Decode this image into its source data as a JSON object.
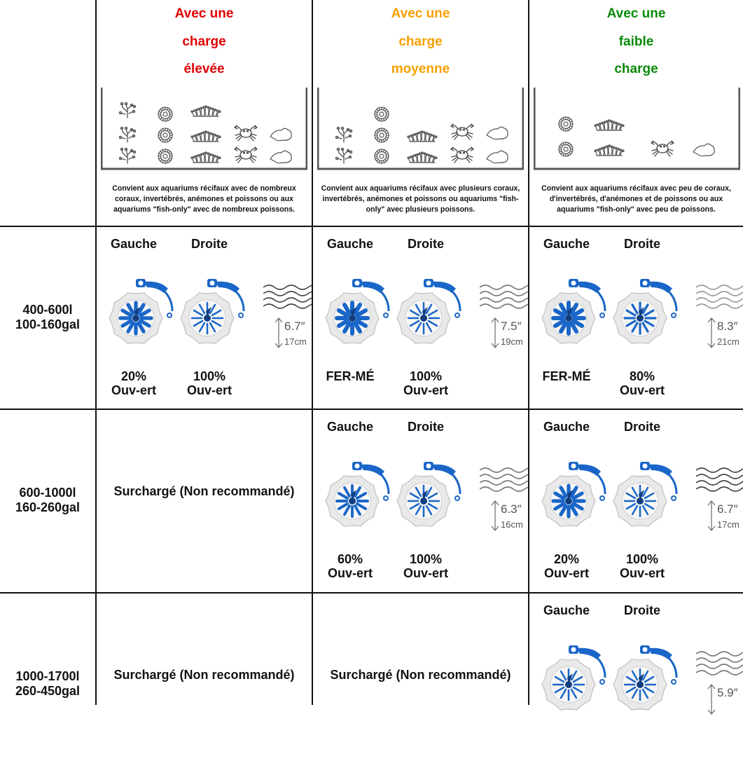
{
  "loads": [
    {
      "key": "high",
      "title_lines": [
        "Avec une",
        "charge",
        "élevée"
      ],
      "color": "#e00000",
      "description": "Convient aux aquariums récifaux avec de nombreux coraux, invertébrés, anémones et poissons ou aux aquariums \"fish-only\" avec de nombreux poissons."
    },
    {
      "key": "medium",
      "title_lines": [
        "Avec une",
        "charge",
        "moyenne"
      ],
      "color": "#f5a000",
      "description": "Convient aux aquariums récifaux avec plusieurs coraux, invertébrés, anémones et poissons ou aquariums \"fish-only\" avec plusieurs poissons."
    },
    {
      "key": "low",
      "title_lines": [
        "Avec une",
        "faible",
        "charge"
      ],
      "color": "#0a8a0a",
      "description": "Convient aux aquariums récifaux avec peu de coraux, d'invertébrés, d'anémones et de poissons ou aux aquariums \"fish-only\" avec peu de poissons."
    }
  ],
  "labels": {
    "left": "Gauche",
    "right": "Droite",
    "overloaded": "Surchargé (Non recommandé)",
    "open_suffix": "Ouv-ert"
  },
  "rows": [
    {
      "size_l": "400-600l",
      "size_gal": "100-160gal",
      "cells": [
        {
          "left_pct": "20%",
          "right_pct": "100%",
          "left_open": 0.2,
          "right_open": 1.0,
          "depth_in": "6.7″",
          "depth_cm": "17cm",
          "wave_color": "#444"
        },
        {
          "left_pct": "FER-MÉ",
          "right_pct": "100%",
          "left_open": 0.0,
          "right_open": 1.0,
          "depth_in": "7.5″",
          "depth_cm": "19cm",
          "wave_color": "#777"
        },
        {
          "left_pct": "FER-MÉ",
          "right_pct": "80%",
          "left_open": 0.0,
          "right_open": 0.8,
          "depth_in": "8.3″",
          "depth_cm": "21cm",
          "wave_color": "#999"
        }
      ]
    },
    {
      "size_l": "600-1000l",
      "size_gal": "160-260gal",
      "cells": [
        null,
        {
          "left_pct": "60%",
          "right_pct": "100%",
          "left_open": 0.6,
          "right_open": 1.0,
          "depth_in": "6.3″",
          "depth_cm": "16cm",
          "wave_color": "#777"
        },
        {
          "left_pct": "20%",
          "right_pct": "100%",
          "left_open": 0.2,
          "right_open": 1.0,
          "depth_in": "6.7″",
          "depth_cm": "17cm",
          "wave_color": "#444"
        }
      ]
    },
    {
      "size_l": "1000-1700l",
      "size_gal": "260-450gal",
      "cells": [
        null,
        null,
        {
          "left_pct": "",
          "right_pct": "",
          "left_open": 1.0,
          "right_open": 1.0,
          "depth_in": "5.9″",
          "depth_cm": "",
          "wave_color": "#777"
        }
      ]
    }
  ],
  "colors": {
    "accent_blue": "#1a66c8",
    "line": "#111111"
  }
}
